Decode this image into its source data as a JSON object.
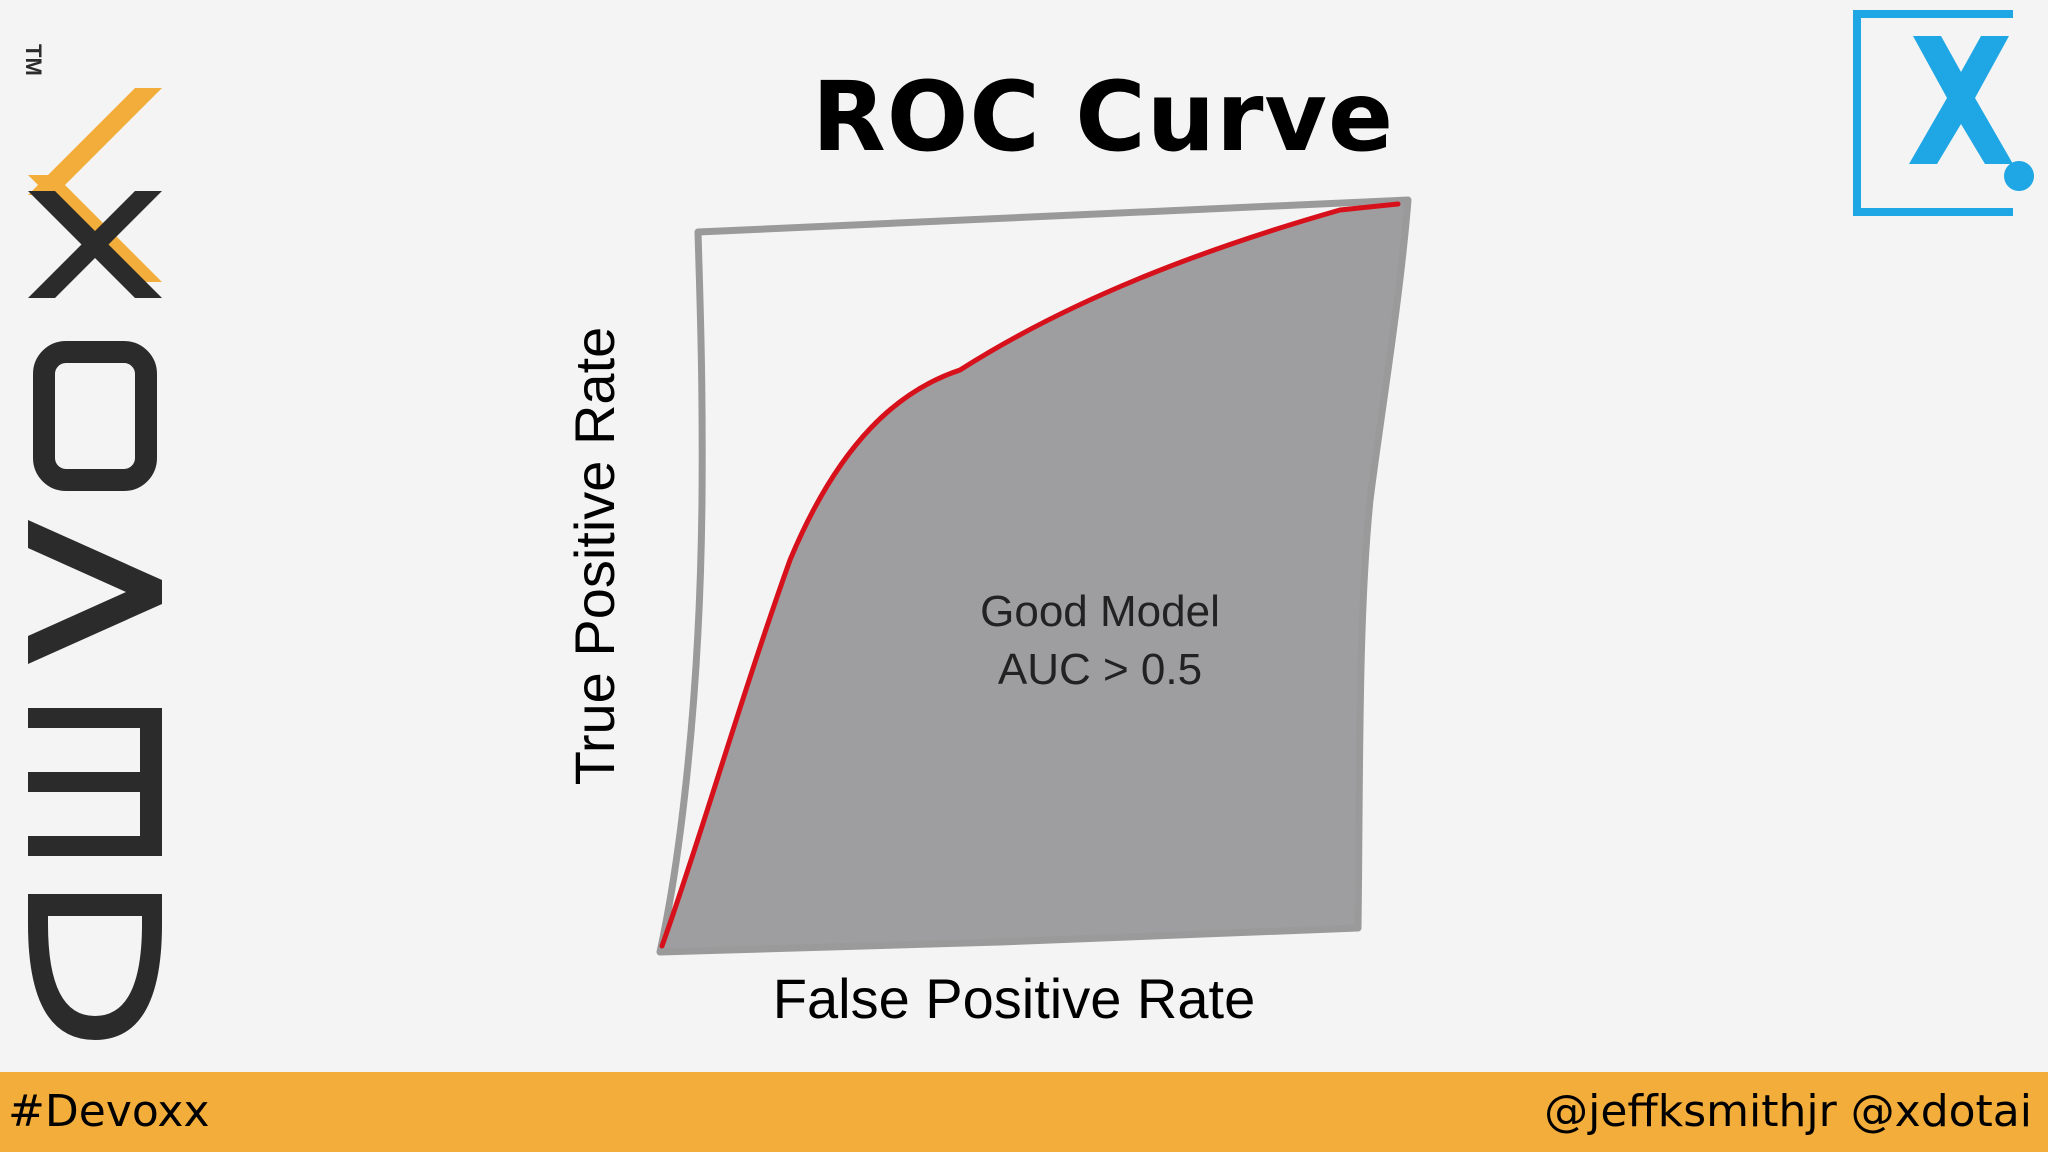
{
  "slide": {
    "title": "ROC Curve"
  },
  "diagram": {
    "area_label_line1": "Good Model",
    "area_label_line2": "AUC > 0.5",
    "x_axis_label": "False Positive Rate",
    "y_axis_label": "True Positive Rate",
    "curve_color": "#d7111b",
    "area_color": "#9e9d9f",
    "frame_color": "#9a9a9a"
  },
  "branding": {
    "side_logo_text": "DEVOXX",
    "trademark": "TM",
    "corner_logo_icon": "x-dot-logo",
    "accent_color": "#f3ad3a",
    "corner_logo_color": "#1ea7e4"
  },
  "footer": {
    "hashtag": "#Devoxx",
    "handles": "@jeffksmithjr @xdotai"
  }
}
